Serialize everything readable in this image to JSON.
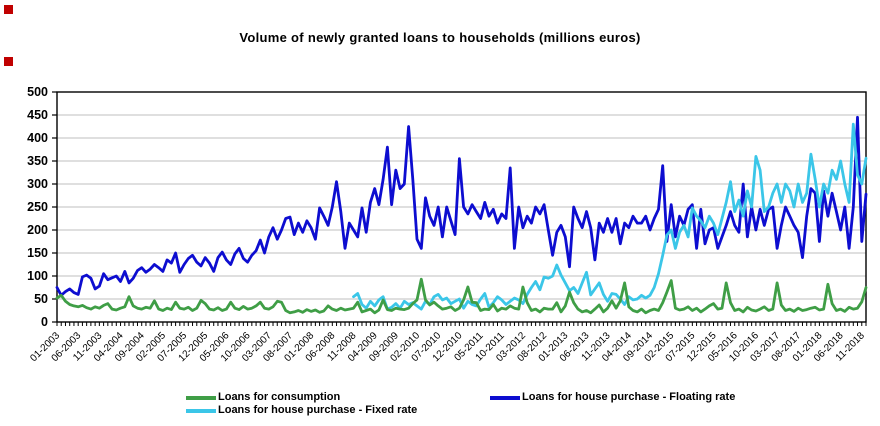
{
  "markers": {
    "top_left": "red-square",
    "left": "red-square",
    "color": "#c00000"
  },
  "legend": {
    "items": [
      {
        "key": "consumption",
        "label": "Loans for consumption"
      },
      {
        "key": "floating",
        "label": "Loans for house purchase - Floating rate"
      },
      {
        "key": "fixed",
        "label": "Loans for house purchase - Fixed rate"
      }
    ]
  },
  "chart_data": {
    "type": "line",
    "title": "Volume of newly granted loans to households (millions euros)",
    "xlabel": "",
    "ylabel": "",
    "ylim": [
      0,
      500
    ],
    "ytick_step": 50,
    "yticks": [
      0,
      50,
      100,
      150,
      200,
      250,
      300,
      350,
      400,
      450,
      500
    ],
    "grid": "horizontal",
    "grid_color": "#bfbfbf",
    "axis_color": "#000000",
    "legend_position": "bottom",
    "n_points": 192,
    "x_start": "01-2003",
    "x_end": "12-2018",
    "x_tick_interval": 5,
    "x_tick_labels": [
      "01-2003",
      "06-2003",
      "11-2003",
      "04-2004",
      "09-2004",
      "02-2005",
      "07-2005",
      "12-2005",
      "05-2006",
      "10-2006",
      "03-2007",
      "08-2007",
      "01-2008",
      "06-2008",
      "11-2008",
      "04-2009",
      "09-2009",
      "02-2010",
      "07-2010",
      "12-2010",
      "05-2011",
      "10-2011",
      "03-2012",
      "08-2012",
      "01-2013",
      "06-2013",
      "11-2013",
      "04-2014",
      "09-2014",
      "02-2015",
      "07-2015",
      "12-2015",
      "05-2016",
      "10-2016",
      "03-2017",
      "08-2017",
      "01-2018",
      "06-2018",
      "11-2018"
    ],
    "series": [
      {
        "key": "floating",
        "name": "Loans for house purchase - Floating rate",
        "color": "#0d0dd0",
        "values": [
          75,
          58,
          66,
          72,
          64,
          60,
          98,
          102,
          95,
          72,
          78,
          105,
          92,
          96,
          100,
          88,
          110,
          85,
          95,
          112,
          118,
          108,
          115,
          125,
          118,
          110,
          135,
          128,
          150,
          108,
          125,
          138,
          145,
          130,
          122,
          140,
          128,
          110,
          140,
          152,
          135,
          125,
          148,
          160,
          138,
          130,
          145,
          155,
          178,
          150,
          185,
          205,
          180,
          200,
          225,
          228,
          190,
          215,
          195,
          220,
          205,
          180,
          248,
          230,
          210,
          250,
          305,
          240,
          160,
          215,
          200,
          185,
          248,
          195,
          260,
          290,
          255,
          310,
          380,
          255,
          330,
          290,
          300,
          425,
          310,
          180,
          160,
          270,
          230,
          210,
          250,
          185,
          250,
          220,
          190,
          355,
          250,
          235,
          255,
          240,
          225,
          260,
          230,
          245,
          215,
          235,
          225,
          335,
          160,
          250,
          205,
          230,
          215,
          250,
          235,
          255,
          200,
          145,
          195,
          210,
          185,
          120,
          250,
          225,
          205,
          240,
          205,
          135,
          215,
          195,
          225,
          195,
          225,
          170,
          215,
          205,
          230,
          215,
          215,
          230,
          200,
          225,
          245,
          340,
          175,
          255,
          185,
          230,
          210,
          245,
          255,
          160,
          245,
          170,
          200,
          205,
          160,
          185,
          210,
          240,
          210,
          195,
          300,
          185,
          250,
          200,
          245,
          210,
          245,
          250,
          160,
          210,
          250,
          230,
          210,
          195,
          140,
          230,
          290,
          280,
          175,
          285,
          230,
          280,
          240,
          200,
          250,
          160,
          250,
          445,
          175,
          278
        ]
      },
      {
        "key": "fixed",
        "name": "Loans for house purchase - Fixed rate",
        "color": "#3bc6e8",
        "values": [
          null,
          null,
          null,
          null,
          null,
          null,
          null,
          null,
          null,
          null,
          null,
          null,
          null,
          null,
          null,
          null,
          null,
          null,
          null,
          null,
          null,
          null,
          null,
          null,
          null,
          null,
          null,
          null,
          null,
          null,
          null,
          null,
          null,
          null,
          null,
          null,
          null,
          null,
          null,
          null,
          null,
          null,
          null,
          null,
          null,
          null,
          null,
          null,
          null,
          null,
          null,
          null,
          null,
          null,
          null,
          null,
          null,
          null,
          null,
          null,
          null,
          null,
          null,
          null,
          null,
          null,
          null,
          null,
          null,
          null,
          55,
          62,
          38,
          30,
          45,
          35,
          48,
          55,
          28,
          32,
          40,
          30,
          45,
          38,
          42,
          35,
          28,
          45,
          38,
          55,
          60,
          48,
          52,
          40,
          45,
          50,
          30,
          45,
          38,
          35,
          50,
          62,
          32,
          42,
          55,
          48,
          38,
          45,
          52,
          48,
          40,
          60,
          75,
          88,
          70,
          98,
          95,
          100,
          124,
          102,
          85,
          68,
          75,
          62,
          85,
          108,
          59,
          72,
          85,
          60,
          45,
          62,
          60,
          50,
          38,
          55,
          48,
          50,
          58,
          52,
          58,
          75,
          105,
          145,
          189,
          200,
          160,
          195,
          210,
          185,
          248,
          230,
          220,
          205,
          230,
          215,
          190,
          225,
          260,
          305,
          240,
          265,
          230,
          285,
          250,
          360,
          330,
          240,
          250,
          280,
          300,
          260,
          300,
          285,
          250,
          300,
          260,
          280,
          365,
          310,
          250,
          300,
          280,
          330,
          310,
          350,
          300,
          260,
          430,
          320,
          300,
          356
        ]
      },
      {
        "key": "consumption",
        "name": "Loans for consumption",
        "color": "#3f9e46",
        "values": [
          52,
          58,
          45,
          38,
          35,
          33,
          36,
          31,
          28,
          33,
          30,
          36,
          40,
          28,
          26,
          30,
          33,
          55,
          35,
          30,
          28,
          32,
          30,
          46,
          28,
          25,
          30,
          27,
          43,
          30,
          28,
          32,
          25,
          30,
          47,
          40,
          28,
          26,
          31,
          25,
          28,
          43,
          30,
          27,
          34,
          28,
          30,
          35,
          43,
          30,
          28,
          33,
          45,
          43,
          25,
          20,
          22,
          25,
          21,
          27,
          23,
          26,
          21,
          24,
          35,
          28,
          25,
          30,
          26,
          28,
          30,
          43,
          22,
          25,
          28,
          20,
          26,
          48,
          27,
          25,
          30,
          28,
          27,
          30,
          40,
          48,
          93,
          48,
          37,
          43,
          35,
          28,
          30,
          33,
          25,
          30,
          48,
          76,
          43,
          42,
          25,
          28,
          27,
          38,
          24,
          30,
          28,
          35,
          30,
          28,
          76,
          42,
          25,
          28,
          22,
          30,
          28,
          28,
          42,
          22,
          35,
          65,
          42,
          28,
          22,
          25,
          20,
          28,
          37,
          22,
          30,
          46,
          30,
          46,
          85,
          33,
          25,
          22,
          28,
          20,
          25,
          28,
          25,
          42,
          65,
          90,
          30,
          26,
          28,
          33,
          25,
          30,
          22,
          28,
          35,
          40,
          28,
          30,
          85,
          42,
          25,
          28,
          22,
          32,
          26,
          24,
          28,
          33,
          25,
          28,
          85,
          37,
          25,
          28,
          23,
          30,
          25,
          27,
          30,
          32,
          26,
          28,
          82,
          40,
          25,
          28,
          23,
          32,
          28,
          30,
          44,
          75
        ]
      }
    ]
  }
}
